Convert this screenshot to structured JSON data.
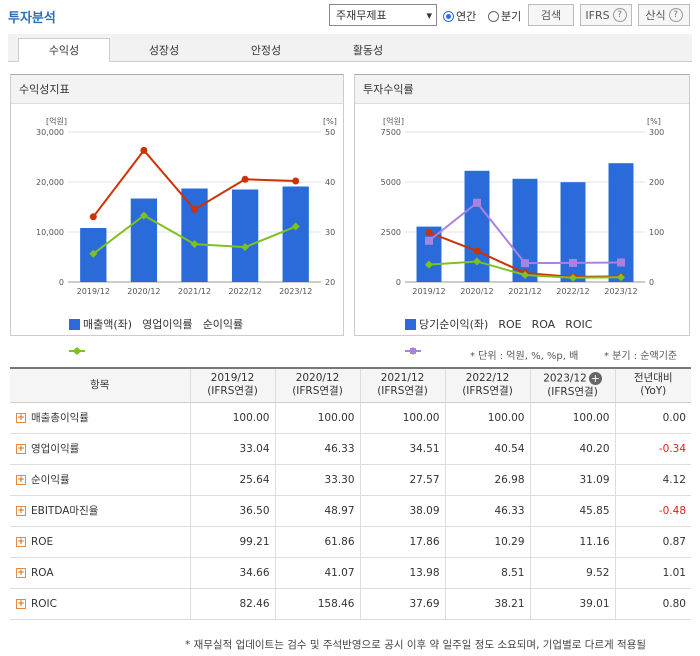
{
  "header": {
    "title": "투자분석",
    "select_value": "주재무제표",
    "radio_annual": "연간",
    "radio_quarter": "분기",
    "search_label": "검색",
    "ifrs_label": "IFRS",
    "formula_label": "산식"
  },
  "tabs": [
    "수익성",
    "성장성",
    "안정성",
    "활동성"
  ],
  "chart_left_title": "수익성지표",
  "chart_right_title": "투자수익률",
  "colors": {
    "bar": "#2a6bd9",
    "op": "#cc3300",
    "net": "#7dc21e",
    "roe": "#cc3300",
    "roa": "#7dc21e",
    "roic": "#a983e0"
  },
  "chart_data": [
    {
      "type": "bar",
      "title": "수익성지표",
      "categories": [
        "2019/12",
        "2020/12",
        "2021/12",
        "2022/12",
        "2023/12"
      ],
      "y_left_unit": "[억원]",
      "y_right_unit": "[%]",
      "y_left_ticks": [
        "30,000",
        "20,000",
        "10,000",
        "0"
      ],
      "y_right_ticks": [
        "50",
        "40",
        "30",
        "20"
      ],
      "ylim_left": [
        0,
        30000
      ],
      "ylim_right": [
        20,
        50
      ],
      "series": [
        {
          "name": "매출액(좌)",
          "type": "bar",
          "axis": "left",
          "values": [
            10800,
            16700,
            18700,
            18500,
            19100
          ]
        },
        {
          "name": "영업이익률",
          "type": "line",
          "axis": "right",
          "values": [
            33.04,
            46.33,
            34.51,
            40.54,
            40.2
          ]
        },
        {
          "name": "순이익률",
          "type": "line",
          "axis": "right",
          "values": [
            25.64,
            33.3,
            27.57,
            26.98,
            31.09
          ]
        }
      ]
    },
    {
      "type": "bar",
      "title": "투자수익률",
      "categories": [
        "2019/12",
        "2020/12",
        "2021/12",
        "2022/12",
        "2023/12"
      ],
      "y_left_unit": "[억원]",
      "y_right_unit": "[%]",
      "y_left_ticks": [
        "7500",
        "5000",
        "2500",
        "0"
      ],
      "y_right_ticks": [
        "300",
        "200",
        "100",
        "0"
      ],
      "ylim_left": [
        0,
        7500
      ],
      "ylim_right": [
        0,
        300
      ],
      "series": [
        {
          "name": "당기순이익(좌)",
          "type": "bar",
          "axis": "left",
          "values": [
            2770,
            5560,
            5160,
            4990,
            5940
          ]
        },
        {
          "name": "ROE",
          "type": "line",
          "axis": "right",
          "values": [
            99.21,
            61.86,
            17.86,
            10.29,
            11.16
          ]
        },
        {
          "name": "ROA",
          "type": "line",
          "axis": "right",
          "values": [
            34.66,
            41.07,
            13.98,
            8.51,
            9.52
          ]
        },
        {
          "name": "ROIC",
          "type": "line",
          "axis": "right",
          "values": [
            82.46,
            158.46,
            37.69,
            38.21,
            39.01
          ]
        }
      ]
    }
  ],
  "notes": {
    "unit": "* 단위 : 억원, %, %p, 배",
    "quarter": "* 분기 : 순액기준"
  },
  "table": {
    "headers": [
      {
        "l1": "항목",
        "l2": ""
      },
      {
        "l1": "2019/12",
        "l2": "(IFRS연결)"
      },
      {
        "l1": "2020/12",
        "l2": "(IFRS연결)"
      },
      {
        "l1": "2021/12",
        "l2": "(IFRS연결)"
      },
      {
        "l1": "2022/12",
        "l2": "(IFRS연결)"
      },
      {
        "l1": "2023/12",
        "l2": "(IFRS연결)"
      },
      {
        "l1": "전년대비",
        "l2": "(YoY)"
      }
    ],
    "rows": [
      {
        "name": "매출총이익률",
        "values": [
          "100.00",
          "100.00",
          "100.00",
          "100.00",
          "100.00",
          "0.00"
        ]
      },
      {
        "name": "영업이익률",
        "values": [
          "33.04",
          "46.33",
          "34.51",
          "40.54",
          "40.20",
          "-0.34"
        ]
      },
      {
        "name": "순이익률",
        "values": [
          "25.64",
          "33.30",
          "27.57",
          "26.98",
          "31.09",
          "4.12"
        ]
      },
      {
        "name": "EBITDA마진율",
        "values": [
          "36.50",
          "48.97",
          "38.09",
          "46.33",
          "45.85",
          "-0.48"
        ]
      },
      {
        "name": "ROE",
        "values": [
          "99.21",
          "61.86",
          "17.86",
          "10.29",
          "11.16",
          "0.87"
        ]
      },
      {
        "name": "ROA",
        "values": [
          "34.66",
          "41.07",
          "13.98",
          "8.51",
          "9.52",
          "1.01"
        ]
      },
      {
        "name": "ROIC",
        "values": [
          "82.46",
          "158.46",
          "37.69",
          "38.21",
          "39.01",
          "0.80"
        ]
      }
    ]
  },
  "footer": "* 재무실적 업데이트는 검수 및 주석반영으로 공시 이후 약 일주일 정도 소요되며, 기업별로 다르게 적용될"
}
